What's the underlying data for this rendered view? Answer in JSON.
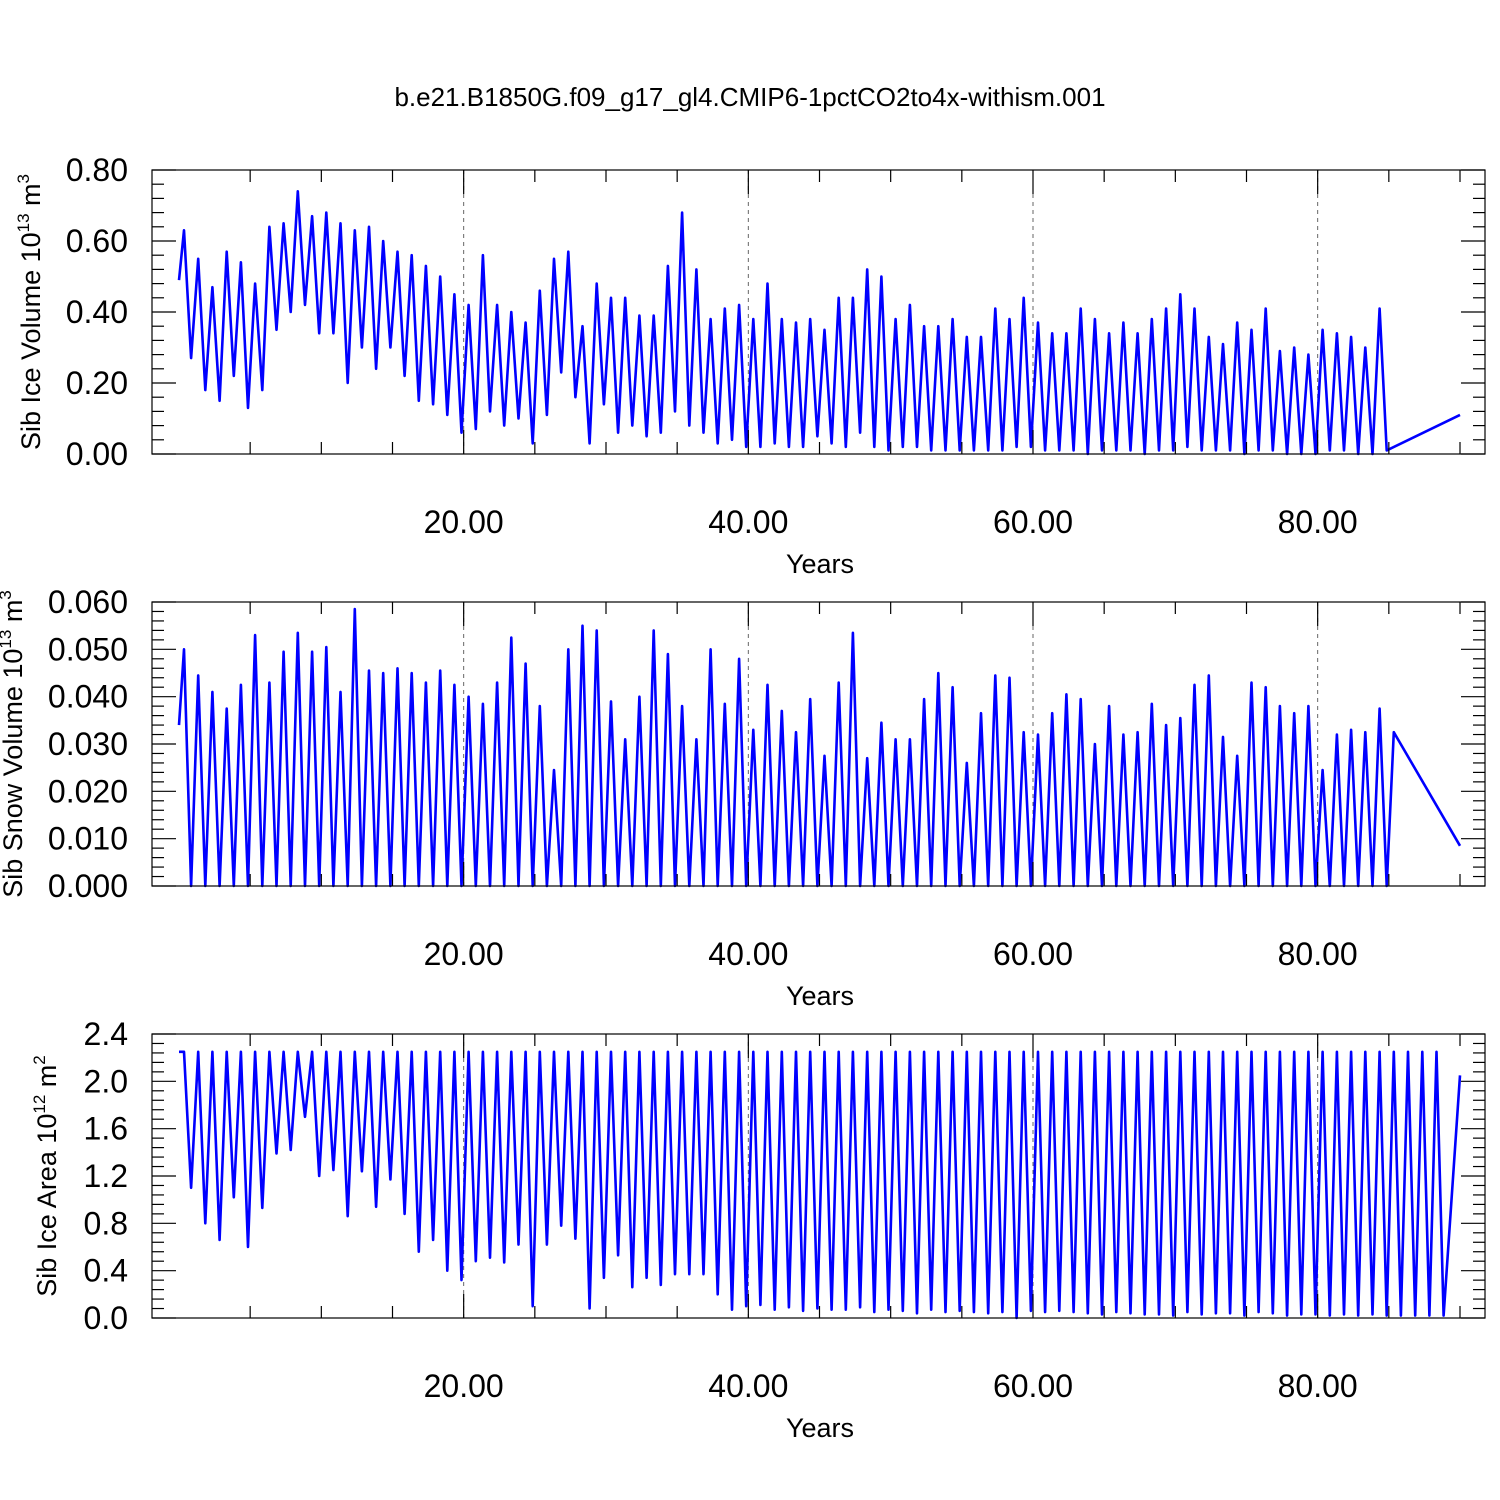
{
  "title": "b.e21.B1850G.f09_g17_gl4.CMIP6-1pctCO2to4x-withism.001",
  "colors": {
    "series": "#0000ff",
    "axis": "#000000",
    "grid": "#666666"
  },
  "chart_data": [
    {
      "type": "line",
      "ylabel": "Sib Ice Volume 10",
      "ylabel_exp": "13",
      "ylabel_unit": " m",
      "ylabel_unit_exp": "3",
      "xlabel": "Years",
      "xlim": [
        0,
        90
      ],
      "ylim": [
        0,
        0.8
      ],
      "x_ticks": [
        20,
        40,
        60,
        80
      ],
      "x_tick_labels": [
        "20.00",
        "40.00",
        "60.00",
        "80.00"
      ],
      "y_ticks": [
        0,
        0.2,
        0.4,
        0.6,
        0.8
      ],
      "y_tick_labels": [
        "0.00",
        "0.20",
        "0.40",
        "0.60",
        "0.80"
      ],
      "grid": "dashed vertical lines at x ticks",
      "series": [
        {
          "peaks": [
            0.63,
            0.55,
            0.47,
            0.57,
            0.54,
            0.48,
            0.64,
            0.65,
            0.74,
            0.67,
            0.68,
            0.65,
            0.63,
            0.64,
            0.6,
            0.57,
            0.56,
            0.53,
            0.5,
            0.45,
            0.42,
            0.56,
            0.42,
            0.4,
            0.37,
            0.46,
            0.55,
            0.57,
            0.36,
            0.48,
            0.44,
            0.44,
            0.39,
            0.39,
            0.53,
            0.68,
            0.52,
            0.38,
            0.41,
            0.42,
            0.38,
            0.48,
            0.38,
            0.37,
            0.38,
            0.35,
            0.44,
            0.44,
            0.52,
            0.5,
            0.38,
            0.42,
            0.36,
            0.36,
            0.38,
            0.33,
            0.33,
            0.41,
            0.38,
            0.44,
            0.37,
            0.34,
            0.34,
            0.41,
            0.38,
            0.34,
            0.37,
            0.34,
            0.38,
            0.41,
            0.45,
            0.41,
            0.33,
            0.31,
            0.37,
            0.35,
            0.41,
            0.29,
            0.3,
            0.28,
            0.35,
            0.34,
            0.33,
            0.3,
            0.41
          ],
          "troughs": [
            0.27,
            0.18,
            0.15,
            0.22,
            0.13,
            0.18,
            0.35,
            0.4,
            0.42,
            0.34,
            0.34,
            0.2,
            0.3,
            0.24,
            0.3,
            0.22,
            0.15,
            0.14,
            0.11,
            0.06,
            0.07,
            0.12,
            0.08,
            0.1,
            0.03,
            0.11,
            0.23,
            0.16,
            0.03,
            0.14,
            0.06,
            0.08,
            0.05,
            0.06,
            0.12,
            0.08,
            0.06,
            0.03,
            0.04,
            0.02,
            0.02,
            0.03,
            0.02,
            0.02,
            0.05,
            0.03,
            0.02,
            0.06,
            0.02,
            0.01,
            0.02,
            0.02,
            0.01,
            0.01,
            0.01,
            0.01,
            0.01,
            0.01,
            0.02,
            0.02,
            0.01,
            0.01,
            0.01,
            0.0,
            0.01,
            0.01,
            0.01,
            0.0,
            0.01,
            0.01,
            0.02,
            0.01,
            0.01,
            0.01,
            0.0,
            0.01,
            0.01,
            0.0,
            0.0,
            0.0,
            0.01,
            0.01,
            0.0,
            0.0,
            0.01
          ],
          "start": 0.49,
          "end": 0.11
        }
      ]
    },
    {
      "type": "line",
      "ylabel": "Sib Snow Volume 10",
      "ylabel_exp": "13",
      "ylabel_unit": " m",
      "ylabel_unit_exp": "3",
      "xlabel": "Years",
      "xlim": [
        0,
        90
      ],
      "ylim": [
        0,
        0.06
      ],
      "x_ticks": [
        20,
        40,
        60,
        80
      ],
      "x_tick_labels": [
        "20.00",
        "40.00",
        "60.00",
        "80.00"
      ],
      "y_ticks": [
        0,
        0.01,
        0.02,
        0.03,
        0.04,
        0.05,
        0.06
      ],
      "y_tick_labels": [
        "0.000",
        "0.010",
        "0.020",
        "0.030",
        "0.040",
        "0.050",
        "0.060"
      ],
      "grid": "dashed vertical lines at x ticks",
      "series": [
        {
          "peaks": [
            0.05,
            0.0445,
            0.041,
            0.0375,
            0.0425,
            0.053,
            0.043,
            0.0495,
            0.0535,
            0.0495,
            0.0505,
            0.041,
            0.0585,
            0.0455,
            0.045,
            0.046,
            0.045,
            0.043,
            0.0455,
            0.0425,
            0.04,
            0.0385,
            0.043,
            0.0525,
            0.047,
            0.038,
            0.0245,
            0.05,
            0.055,
            0.054,
            0.039,
            0.031,
            0.04,
            0.054,
            0.049,
            0.038,
            0.031,
            0.05,
            0.0385,
            0.048,
            0.033,
            0.0425,
            0.037,
            0.0325,
            0.0395,
            0.0275,
            0.043,
            0.0535,
            0.027,
            0.0345,
            0.031,
            0.031,
            0.0395,
            0.045,
            0.042,
            0.026,
            0.0365,
            0.0445,
            0.044,
            0.0325,
            0.032,
            0.0365,
            0.0405,
            0.0395,
            0.03,
            0.038,
            0.032,
            0.0325,
            0.0385,
            0.034,
            0.0355,
            0.0425,
            0.0445,
            0.0315,
            0.0275,
            0.043,
            0.042,
            0.038,
            0.0365,
            0.038,
            0.0245,
            0.032,
            0.033,
            0.0325,
            0.0375,
            0.0325
          ],
          "troughs": [
            0.0,
            0.0,
            0.0,
            0.0,
            0.0,
            0.0,
            0.0,
            0.0,
            0.0,
            0.0,
            0.0,
            0.0,
            0.0,
            0.0,
            0.0,
            0.0,
            0.0,
            0.0,
            0.0,
            0.0,
            0.0,
            0.0,
            0.0,
            0.0,
            0.0,
            0.0,
            0.0,
            0.0,
            0.0,
            0.0,
            0.0,
            0.0,
            0.0,
            0.0,
            0.0,
            0.0,
            0.0,
            0.0,
            0.0,
            0.0,
            0.0,
            0.0,
            0.0,
            0.0,
            0.0,
            0.0,
            0.0,
            0.0,
            0.0,
            0.0,
            0.0,
            0.0,
            0.0,
            0.0,
            0.0,
            0.0,
            0.0,
            0.0,
            0.0,
            0.0,
            0.0,
            0.0,
            0.0,
            0.0,
            0.0,
            0.0,
            0.0,
            0.0,
            0.0,
            0.0,
            0.0,
            0.0,
            0.0,
            0.0,
            0.0,
            0.0,
            0.0,
            0.0,
            0.0,
            0.0,
            0.0,
            0.0,
            0.0,
            0.0,
            0.0
          ],
          "start": 0.034,
          "end": 0.0085
        }
      ]
    },
    {
      "type": "line",
      "ylabel": "Sib Ice Area 10",
      "ylabel_exp": "12",
      "ylabel_unit": " m",
      "ylabel_unit_exp": "2",
      "xlabel": "Years",
      "xlim": [
        0,
        90
      ],
      "ylim": [
        0,
        2.4
      ],
      "x_ticks": [
        20,
        40,
        60,
        80
      ],
      "x_tick_labels": [
        "20.00",
        "40.00",
        "60.00",
        "80.00"
      ],
      "y_ticks": [
        0,
        0.4,
        0.8,
        1.2,
        1.6,
        2.0,
        2.4
      ],
      "y_tick_labels": [
        "0.0",
        "0.4",
        "0.8",
        "1.2",
        "1.6",
        "2.0",
        "2.4"
      ],
      "grid": "dashed vertical lines at x ticks",
      "series": [
        {
          "peaks": [
            2.25,
            2.25,
            2.25,
            2.25,
            2.25,
            2.25,
            2.25,
            2.25,
            2.25,
            2.25,
            2.25,
            2.25,
            2.25,
            2.25,
            2.25,
            2.25,
            2.25,
            2.25,
            2.25,
            2.25,
            2.25,
            2.25,
            2.25,
            2.25,
            2.25,
            2.25,
            2.25,
            2.25,
            2.25,
            2.25,
            2.25,
            2.25,
            2.25,
            2.25,
            2.25,
            2.25,
            2.25,
            2.25,
            2.25,
            2.25,
            2.25,
            2.25,
            2.25,
            2.25,
            2.25,
            2.25,
            2.25,
            2.25,
            2.25,
            2.25,
            2.25,
            2.25,
            2.25,
            2.25,
            2.25,
            2.25,
            2.25,
            2.25,
            2.25,
            2.25,
            2.25,
            2.25,
            2.25,
            2.25,
            2.25,
            2.25,
            2.25,
            2.25,
            2.25,
            2.25,
            2.25,
            2.25,
            2.25,
            2.25,
            2.25,
            2.25,
            2.25,
            2.25,
            2.25,
            2.25,
            2.25,
            2.25,
            2.25,
            2.25,
            2.25,
            2.25,
            2.25,
            2.25,
            2.25
          ],
          "troughs": [
            1.1,
            0.8,
            0.66,
            1.02,
            0.6,
            0.93,
            1.39,
            1.42,
            1.7,
            1.2,
            1.25,
            0.86,
            1.24,
            0.94,
            1.17,
            0.88,
            0.56,
            0.66,
            0.4,
            0.32,
            0.48,
            0.51,
            0.47,
            0.62,
            0.1,
            0.62,
            0.78,
            0.67,
            0.08,
            0.34,
            0.53,
            0.26,
            0.34,
            0.28,
            0.37,
            0.37,
            0.37,
            0.2,
            0.07,
            0.1,
            0.11,
            0.07,
            0.09,
            0.06,
            0.08,
            0.07,
            0.07,
            0.09,
            0.05,
            0.07,
            0.06,
            0.04,
            0.07,
            0.05,
            0.06,
            0.05,
            0.04,
            0.05,
            0.0,
            0.06,
            0.05,
            0.06,
            0.05,
            0.04,
            0.03,
            0.05,
            0.04,
            0.03,
            0.03,
            0.02,
            0.05,
            0.03,
            0.04,
            0.04,
            0.02,
            0.05,
            0.04,
            0.02,
            0.03,
            0.03,
            0.02,
            0.03,
            0.02,
            0.03,
            0.02,
            0.02,
            0.02,
            0.02,
            0.02,
            0.06
          ],
          "start": 2.25,
          "end": 2.05
        }
      ]
    }
  ]
}
